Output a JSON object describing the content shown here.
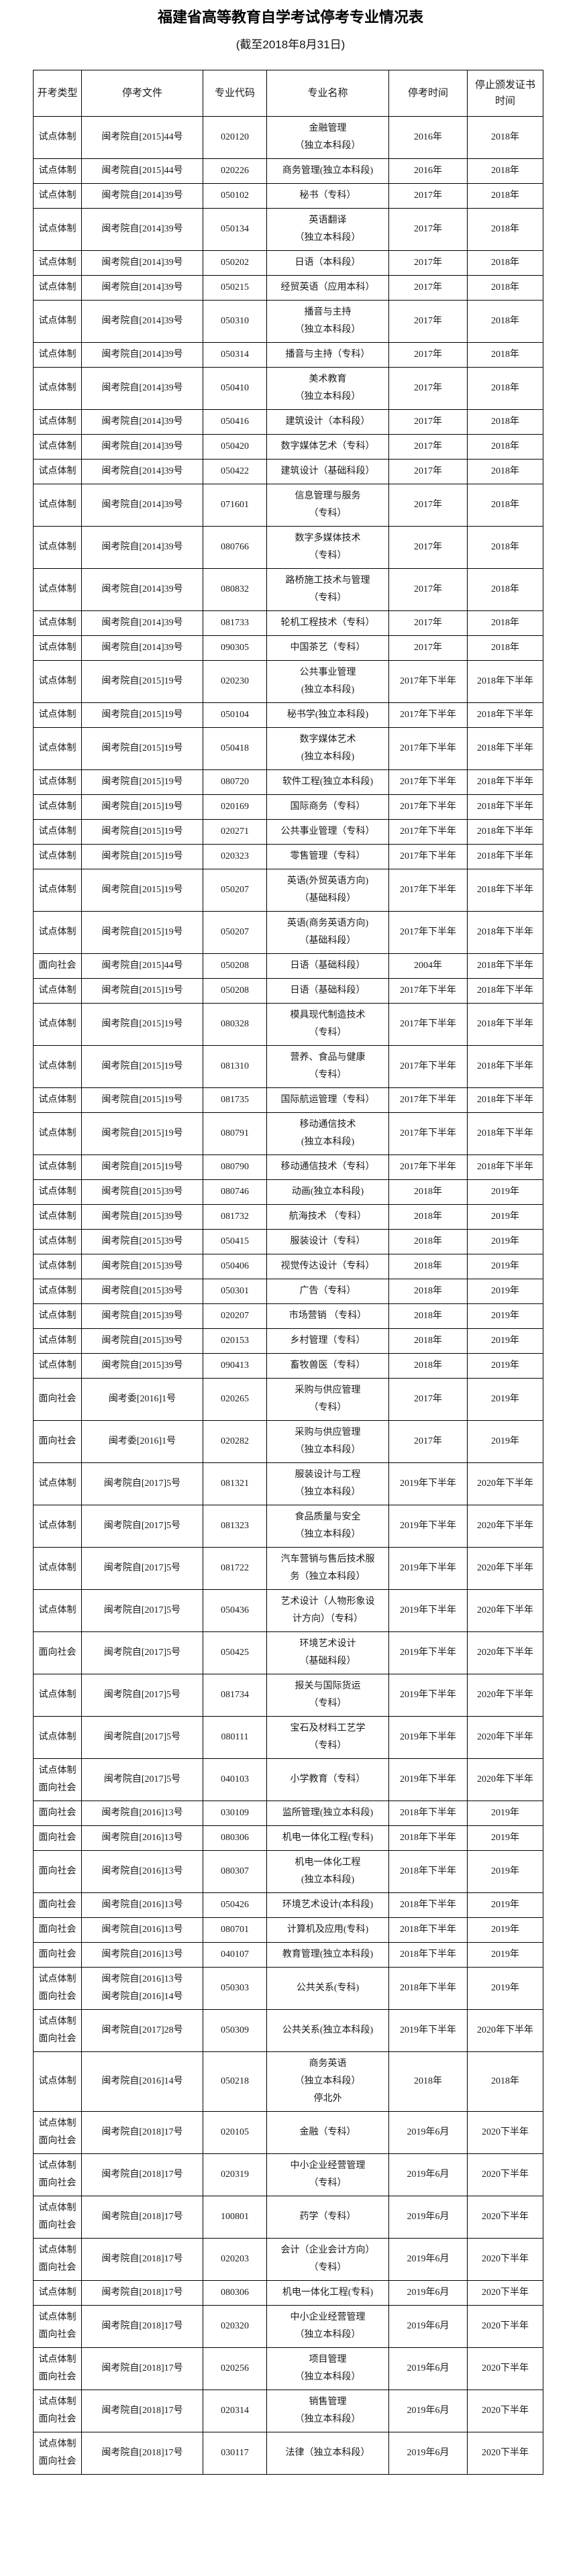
{
  "page": {
    "title": "福建省高等教育自学考试停考专业情况表",
    "subtitle": "(截至2018年8月31日)"
  },
  "table": {
    "columns": [
      {
        "lines": [
          "开考类型"
        ]
      },
      {
        "lines": [
          "停考文件"
        ]
      },
      {
        "lines": [
          "专业代码"
        ]
      },
      {
        "lines": [
          "专业名称"
        ]
      },
      {
        "lines": [
          "停考时间"
        ]
      },
      {
        "lines": [
          "停止颁发证书",
          "时间"
        ]
      }
    ],
    "rows": [
      {
        "type": [
          "试点体制"
        ],
        "doc": [
          "闽考院自[2015]44号"
        ],
        "code": "020120",
        "name": [
          "金融管理",
          "（独立本科段）"
        ],
        "stop": "2016年",
        "cert": "2018年"
      },
      {
        "type": [
          "试点体制"
        ],
        "doc": [
          "闽考院自[2015]44号"
        ],
        "code": "020226",
        "name": [
          "商务管理(独立本科段)"
        ],
        "stop": "2016年",
        "cert": "2018年"
      },
      {
        "type": [
          "试点体制"
        ],
        "doc": [
          "闽考院自[2014]39号"
        ],
        "code": "050102",
        "name": [
          "秘书（专科）"
        ],
        "stop": "2017年",
        "cert": "2018年"
      },
      {
        "type": [
          "试点体制"
        ],
        "doc": [
          "闽考院自[2014]39号"
        ],
        "code": "050134",
        "name": [
          "英语翻译",
          "（独立本科段）"
        ],
        "stop": "2017年",
        "cert": "2018年"
      },
      {
        "type": [
          "试点体制"
        ],
        "doc": [
          "闽考院自[2014]39号"
        ],
        "code": "050202",
        "name": [
          "日语（本科段）"
        ],
        "stop": "2017年",
        "cert": "2018年"
      },
      {
        "type": [
          "试点体制"
        ],
        "doc": [
          "闽考院自[2014]39号"
        ],
        "code": "050215",
        "name": [
          "经贸英语（应用本科）"
        ],
        "stop": "2017年",
        "cert": "2018年"
      },
      {
        "type": [
          "试点体制"
        ],
        "doc": [
          "闽考院自[2014]39号"
        ],
        "code": "050310",
        "name": [
          "播音与主持",
          "（独立本科段）"
        ],
        "stop": "2017年",
        "cert": "2018年"
      },
      {
        "type": [
          "试点体制"
        ],
        "doc": [
          "闽考院自[2014]39号"
        ],
        "code": "050314",
        "name": [
          "播音与主持（专科）"
        ],
        "stop": "2017年",
        "cert": "2018年"
      },
      {
        "type": [
          "试点体制"
        ],
        "doc": [
          "闽考院自[2014]39号"
        ],
        "code": "050410",
        "name": [
          "美术教育",
          "（独立本科段）"
        ],
        "stop": "2017年",
        "cert": "2018年"
      },
      {
        "type": [
          "试点体制"
        ],
        "doc": [
          "闽考院自[2014]39号"
        ],
        "code": "050416",
        "name": [
          "建筑设计（本科段）"
        ],
        "stop": "2017年",
        "cert": "2018年"
      },
      {
        "type": [
          "试点体制"
        ],
        "doc": [
          "闽考院自[2014]39号"
        ],
        "code": "050420",
        "name": [
          "数字媒体艺术（专科）"
        ],
        "stop": "2017年",
        "cert": "2018年"
      },
      {
        "type": [
          "试点体制"
        ],
        "doc": [
          "闽考院自[2014]39号"
        ],
        "code": "050422",
        "name": [
          "建筑设计（基础科段）"
        ],
        "stop": "2017年",
        "cert": "2018年"
      },
      {
        "type": [
          "试点体制"
        ],
        "doc": [
          "闽考院自[2014]39号"
        ],
        "code": "071601",
        "name": [
          "信息管理与服务",
          "（专科）"
        ],
        "stop": "2017年",
        "cert": "2018年"
      },
      {
        "type": [
          "试点体制"
        ],
        "doc": [
          "闽考院自[2014]39号"
        ],
        "code": "080766",
        "name": [
          "数字多媒体技术",
          "（专科）"
        ],
        "stop": "2017年",
        "cert": "2018年"
      },
      {
        "type": [
          "试点体制"
        ],
        "doc": [
          "闽考院自[2014]39号"
        ],
        "code": "080832",
        "name": [
          "路桥施工技术与管理",
          "（专科）"
        ],
        "stop": "2017年",
        "cert": "2018年"
      },
      {
        "type": [
          "试点体制"
        ],
        "doc": [
          "闽考院自[2014]39号"
        ],
        "code": "081733",
        "name": [
          "轮机工程技术（专科）"
        ],
        "stop": "2017年",
        "cert": "2018年"
      },
      {
        "type": [
          "试点体制"
        ],
        "doc": [
          "闽考院自[2014]39号"
        ],
        "code": "090305",
        "name": [
          "中国茶艺（专科）"
        ],
        "stop": "2017年",
        "cert": "2018年"
      },
      {
        "type": [
          "试点体制"
        ],
        "doc": [
          "闽考院自[2015]19号"
        ],
        "code": "020230",
        "name": [
          "公共事业管理",
          "(独立本科段)"
        ],
        "stop": "2017年下半年",
        "cert": "2018年下半年"
      },
      {
        "type": [
          "试点体制"
        ],
        "doc": [
          "闽考院自[2015]19号"
        ],
        "code": "050104",
        "name": [
          "秘书学(独立本科段)"
        ],
        "stop": "2017年下半年",
        "cert": "2018年下半年"
      },
      {
        "type": [
          "试点体制"
        ],
        "doc": [
          "闽考院自[2015]19号"
        ],
        "code": "050418",
        "name": [
          "数字媒体艺术",
          "(独立本科段)"
        ],
        "stop": "2017年下半年",
        "cert": "2018年下半年"
      },
      {
        "type": [
          "试点体制"
        ],
        "doc": [
          "闽考院自[2015]19号"
        ],
        "code": "080720",
        "name": [
          "软件工程(独立本科段)"
        ],
        "stop": "2017年下半年",
        "cert": "2018年下半年"
      },
      {
        "type": [
          "试点体制"
        ],
        "doc": [
          "闽考院自[2015]19号"
        ],
        "code": "020169",
        "name": [
          "国际商务（专科）"
        ],
        "stop": "2017年下半年",
        "cert": "2018年下半年"
      },
      {
        "type": [
          "试点体制"
        ],
        "doc": [
          "闽考院自[2015]19号"
        ],
        "code": "020271",
        "name": [
          "公共事业管理（专科）"
        ],
        "stop": "2017年下半年",
        "cert": "2018年下半年"
      },
      {
        "type": [
          "试点体制"
        ],
        "doc": [
          "闽考院自[2015]19号"
        ],
        "code": "020323",
        "name": [
          "零售管理（专科）"
        ],
        "stop": "2017年下半年",
        "cert": "2018年下半年"
      },
      {
        "type": [
          "试点体制"
        ],
        "doc": [
          "闽考院自[2015]19号"
        ],
        "code": "050207",
        "name": [
          "英语(外贸英语方向)",
          "（基础科段）"
        ],
        "stop": "2017年下半年",
        "cert": "2018年下半年"
      },
      {
        "type": [
          "试点体制"
        ],
        "doc": [
          "闽考院自[2015]19号"
        ],
        "code": "050207",
        "name": [
          "英语(商务英语方向)",
          "（基础科段）"
        ],
        "stop": "2017年下半年",
        "cert": "2018年下半年"
      },
      {
        "type": [
          "面向社会"
        ],
        "doc": [
          "闽考院自[2015]44号"
        ],
        "code": "050208",
        "name": [
          "日语（基础科段）"
        ],
        "stop": "2004年",
        "cert": "2018年下半年"
      },
      {
        "type": [
          "试点体制"
        ],
        "doc": [
          "闽考院自[2015]19号"
        ],
        "code": "050208",
        "name": [
          "日语（基础科段）"
        ],
        "stop": "2017年下半年",
        "cert": "2018年下半年"
      },
      {
        "type": [
          "试点体制"
        ],
        "doc": [
          "闽考院自[2015]19号"
        ],
        "code": "080328",
        "name": [
          "模具现代制造技术",
          "（专科）"
        ],
        "stop": "2017年下半年",
        "cert": "2018年下半年"
      },
      {
        "type": [
          "试点体制"
        ],
        "doc": [
          "闽考院自[2015]19号"
        ],
        "code": "081310",
        "name": [
          "营养、食品与健康",
          "（专科）"
        ],
        "stop": "2017年下半年",
        "cert": "2018年下半年"
      },
      {
        "type": [
          "试点体制"
        ],
        "doc": [
          "闽考院自[2015]19号"
        ],
        "code": "081735",
        "name": [
          "国际航运管理（专科）"
        ],
        "stop": "2017年下半年",
        "cert": "2018年下半年"
      },
      {
        "type": [
          "试点体制"
        ],
        "doc": [
          "闽考院自[2015]19号"
        ],
        "code": "080791",
        "name": [
          "移动通信技术",
          "(独立本科段)"
        ],
        "stop": "2017年下半年",
        "cert": "2018年下半年"
      },
      {
        "type": [
          "试点体制"
        ],
        "doc": [
          "闽考院自[2015]19号"
        ],
        "code": "080790",
        "name": [
          "移动通信技术（专科）"
        ],
        "stop": "2017年下半年",
        "cert": "2018年下半年"
      },
      {
        "type": [
          "试点体制"
        ],
        "doc": [
          "闽考院自[2015]39号"
        ],
        "code": "080746",
        "name": [
          "动画(独立本科段)"
        ],
        "stop": "2018年",
        "cert": "2019年"
      },
      {
        "type": [
          "试点体制"
        ],
        "doc": [
          "闽考院自[2015]39号"
        ],
        "code": "081732",
        "name": [
          "航海技术 （专科）"
        ],
        "stop": "2018年",
        "cert": "2019年"
      },
      {
        "type": [
          "试点体制"
        ],
        "doc": [
          "闽考院自[2015]39号"
        ],
        "code": "050415",
        "name": [
          "服装设计（专科）"
        ],
        "stop": "2018年",
        "cert": "2019年"
      },
      {
        "type": [
          "试点体制"
        ],
        "doc": [
          "闽考院自[2015]39号"
        ],
        "code": "050406",
        "name": [
          "视觉传达设计（专科）"
        ],
        "stop": "2018年",
        "cert": "2019年"
      },
      {
        "type": [
          "试点体制"
        ],
        "doc": [
          "闽考院自[2015]39号"
        ],
        "code": "050301",
        "name": [
          "广告（专科）"
        ],
        "stop": "2018年",
        "cert": "2019年"
      },
      {
        "type": [
          "试点体制"
        ],
        "doc": [
          "闽考院自[2015]39号"
        ],
        "code": "020207",
        "name": [
          "市场营销 （专科）"
        ],
        "stop": "2018年",
        "cert": "2019年"
      },
      {
        "type": [
          "试点体制"
        ],
        "doc": [
          "闽考院自[2015]39号"
        ],
        "code": "020153",
        "name": [
          "乡村管理（专科）"
        ],
        "stop": "2018年",
        "cert": "2019年"
      },
      {
        "type": [
          "试点体制"
        ],
        "doc": [
          "闽考院自[2015]39号"
        ],
        "code": "090413",
        "name": [
          "畜牧兽医（专科）"
        ],
        "stop": "2018年",
        "cert": "2019年"
      },
      {
        "type": [
          "面向社会"
        ],
        "doc": [
          "闽考委[2016]1号"
        ],
        "code": "020265",
        "name": [
          "采购与供应管理",
          "（专科）"
        ],
        "stop": "2017年",
        "cert": "2019年"
      },
      {
        "type": [
          "面向社会"
        ],
        "doc": [
          "闽考委[2016]1号"
        ],
        "code": "020282",
        "name": [
          "采购与供应管理",
          "（独立本科段）"
        ],
        "stop": "2017年",
        "cert": "2019年"
      },
      {
        "type": [
          "试点体制"
        ],
        "doc": [
          "闽考院自[2017]5号"
        ],
        "code": "081321",
        "name": [
          "服装设计与工程",
          "（独立本科段）"
        ],
        "stop": "2019年下半年",
        "cert": "2020年下半年"
      },
      {
        "type": [
          "试点体制"
        ],
        "doc": [
          "闽考院自[2017]5号"
        ],
        "code": "081323",
        "name": [
          "食品质量与安全",
          "（独立本科段）"
        ],
        "stop": "2019年下半年",
        "cert": "2020年下半年"
      },
      {
        "type": [
          "试点体制"
        ],
        "doc": [
          "闽考院自[2017]5号"
        ],
        "code": "081722",
        "name": [
          "汽车营销与售后技术服",
          "务（独立本科段）"
        ],
        "stop": "2019年下半年",
        "cert": "2020年下半年"
      },
      {
        "type": [
          "试点体制"
        ],
        "doc": [
          "闽考院自[2017]5号"
        ],
        "code": "050436",
        "name": [
          "艺术设计（人物形象设",
          "计方向）（专科）"
        ],
        "stop": "2019年下半年",
        "cert": "2020年下半年"
      },
      {
        "type": [
          "面向社会"
        ],
        "doc": [
          "闽考院自[2017]5号"
        ],
        "code": "050425",
        "name": [
          "环境艺术设计",
          "（基础科段）"
        ],
        "stop": "2019年下半年",
        "cert": "2020年下半年"
      },
      {
        "type": [
          "试点体制"
        ],
        "doc": [
          "闽考院自[2017]5号"
        ],
        "code": "081734",
        "name": [
          "报关与国际货运",
          "（专科）"
        ],
        "stop": "2019年下半年",
        "cert": "2020年下半年"
      },
      {
        "type": [
          "试点体制"
        ],
        "doc": [
          "闽考院自[2017]5号"
        ],
        "code": "080111",
        "name": [
          "宝石及材料工艺学",
          "（专科）"
        ],
        "stop": "2019年下半年",
        "cert": "2020年下半年"
      },
      {
        "type": [
          "试点体制",
          "面向社会"
        ],
        "doc": [
          "闽考院自[2017]5号"
        ],
        "code": "040103",
        "name": [
          "小学教育（专科）"
        ],
        "stop": "2019年下半年",
        "cert": "2020年下半年"
      },
      {
        "type": [
          "面向社会"
        ],
        "doc": [
          "闽考院自[2016]13号"
        ],
        "code": "030109",
        "name": [
          "监所管理(独立本科段)"
        ],
        "stop": "2018年下半年",
        "cert": "2019年"
      },
      {
        "type": [
          "面向社会"
        ],
        "doc": [
          "闽考院自[2016]13号"
        ],
        "code": "080306",
        "name": [
          "机电一体化工程(专科)"
        ],
        "stop": "2018年下半年",
        "cert": "2019年"
      },
      {
        "type": [
          "面向社会"
        ],
        "doc": [
          "闽考院自[2016]13号"
        ],
        "code": "080307",
        "name": [
          "机电一体化工程",
          "(独立本科段)"
        ],
        "stop": "2018年下半年",
        "cert": "2019年"
      },
      {
        "type": [
          "面向社会"
        ],
        "doc": [
          "闽考院自[2016]13号"
        ],
        "code": "050426",
        "name": [
          "环境艺术设计(本科段)"
        ],
        "stop": "2018年下半年",
        "cert": "2019年"
      },
      {
        "type": [
          "面向社会"
        ],
        "doc": [
          "闽考院自[2016]13号"
        ],
        "code": "080701",
        "name": [
          "计算机及应用(专科)"
        ],
        "stop": "2018年下半年",
        "cert": "2019年"
      },
      {
        "type": [
          "面向社会"
        ],
        "doc": [
          "闽考院自[2016]13号"
        ],
        "code": "040107",
        "name": [
          "教育管理(独立本科段)"
        ],
        "stop": "2018年下半年",
        "cert": "2019年"
      },
      {
        "type": [
          "试点体制",
          "面向社会"
        ],
        "doc": [
          "闽考院自[2016]13号",
          "闽考院自[2016]14号"
        ],
        "code": "050303",
        "name": [
          "公共关系(专科)"
        ],
        "stop": "2018年下半年",
        "cert": "2019年"
      },
      {
        "type": [
          "试点体制",
          "面向社会"
        ],
        "doc": [
          "闽考院自[2017]28号"
        ],
        "code": "050309",
        "name": [
          "公共关系(独立本科段)"
        ],
        "stop": "2019年下半年",
        "cert": "2020年下半年"
      },
      {
        "type": [
          "试点体制"
        ],
        "doc": [
          "闽考院自[2016]14号"
        ],
        "code": "050218",
        "name": [
          "商务英语",
          "（独立本科段）",
          "停北外"
        ],
        "stop": "2018年",
        "cert": "2018年"
      },
      {
        "type": [
          "试点体制",
          "面向社会"
        ],
        "doc": [
          "闽考院自[2018]17号"
        ],
        "code": "020105",
        "name": [
          "金融（专科）"
        ],
        "stop": "2019年6月",
        "cert": "2020下半年"
      },
      {
        "type": [
          "试点体制",
          "面向社会"
        ],
        "doc": [
          "闽考院自[2018]17号"
        ],
        "code": "020319",
        "name": [
          "中小企业经营管理",
          "（专科）"
        ],
        "stop": "2019年6月",
        "cert": "2020下半年"
      },
      {
        "type": [
          "试点体制",
          "面向社会"
        ],
        "doc": [
          "闽考院自[2018]17号"
        ],
        "code": "100801",
        "name": [
          "药学（专科）"
        ],
        "stop": "2019年6月",
        "cert": "2020下半年"
      },
      {
        "type": [
          "试点体制",
          "面向社会"
        ],
        "doc": [
          "闽考院自[2018]17号"
        ],
        "code": "020203",
        "name": [
          "会计（企业会计方向）",
          "（专科）"
        ],
        "stop": "2019年6月",
        "cert": "2020下半年"
      },
      {
        "type": [
          "试点体制"
        ],
        "doc": [
          "闽考院自[2018]17号"
        ],
        "code": "080306",
        "name": [
          "机电一体化工程(专科)"
        ],
        "stop": "2019年6月",
        "cert": "2020下半年"
      },
      {
        "type": [
          "试点体制",
          "面向社会"
        ],
        "doc": [
          "闽考院自[2018]17号"
        ],
        "code": "020320",
        "name": [
          "中小企业经营管理",
          "（独立本科段）"
        ],
        "stop": "2019年6月",
        "cert": "2020下半年"
      },
      {
        "type": [
          "试点体制",
          "面向社会"
        ],
        "doc": [
          "闽考院自[2018]17号"
        ],
        "code": "020256",
        "name": [
          "项目管理",
          "（独立本科段）"
        ],
        "stop": "2019年6月",
        "cert": "2020下半年"
      },
      {
        "type": [
          "试点体制",
          "面向社会"
        ],
        "doc": [
          "闽考院自[2018]17号"
        ],
        "code": "020314",
        "name": [
          "销售管理",
          "（独立本科段）"
        ],
        "stop": "2019年6月",
        "cert": "2020下半年"
      },
      {
        "type": [
          "试点体制",
          "面向社会"
        ],
        "doc": [
          "闽考院自[2018]17号"
        ],
        "code": "030117",
        "name": [
          "法律（独立本科段）"
        ],
        "stop": "2019年6月",
        "cert": "2020下半年"
      }
    ]
  }
}
